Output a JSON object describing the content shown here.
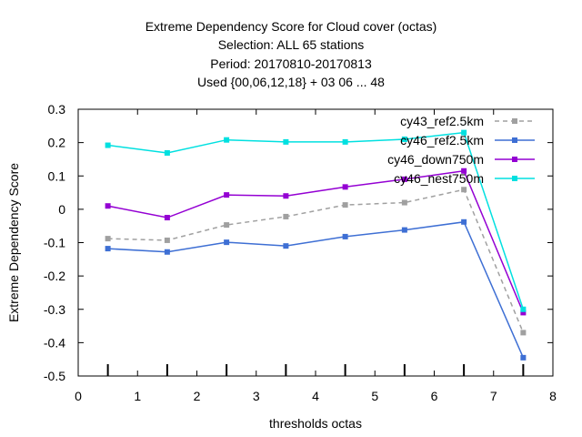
{
  "chart_data": {
    "type": "line",
    "title_lines": [
      "Extreme Dependency Score  for Cloud cover (octas)",
      "Selection: ALL     65 stations",
      "Period: 20170810-20170813",
      "Used {00,06,12,18} + 03 06 ... 48"
    ],
    "xlabel": "thresholds octas",
    "ylabel": "Extreme Dependency Score",
    "xlim": [
      0,
      8
    ],
    "ylim": [
      -0.5,
      0.3
    ],
    "x_ticks": [
      0,
      1,
      2,
      3,
      4,
      5,
      6,
      7,
      8
    ],
    "y_ticks": [
      0.3,
      0.2,
      0.1,
      0,
      -0.1,
      -0.2,
      -0.3,
      -0.4,
      -0.5
    ],
    "x_tick_labels": [
      "0",
      "1",
      "2",
      "3",
      "4",
      "5",
      "6",
      "7",
      "8"
    ],
    "y_tick_labels": [
      "0.3",
      "0.2",
      "0.1",
      "0",
      "-0.1",
      "-0.2",
      "-0.3",
      "-0.4",
      "-0.5"
    ],
    "grid": false,
    "legend_position": "top-right",
    "x": [
      0.5,
      1.5,
      2.5,
      3.5,
      4.5,
      5.5,
      6.5,
      7.5
    ],
    "bottom_bar_x": [
      0.5,
      1.5,
      2.5,
      3.5,
      4.5,
      5.5,
      6.5,
      7.5
    ],
    "series": [
      {
        "name": "cy43_ref2.5km",
        "color": "#a0a0a0",
        "dashed": true,
        "values": [
          -0.088,
          -0.093,
          -0.047,
          -0.022,
          0.013,
          0.02,
          0.059,
          -0.37
        ]
      },
      {
        "name": "cy46_ref2.5km",
        "color": "#3e6fd4",
        "dashed": false,
        "values": [
          -0.118,
          -0.128,
          -0.099,
          -0.11,
          -0.082,
          -0.062,
          -0.038,
          -0.445
        ]
      },
      {
        "name": "cy46_down750m",
        "color": "#9400d3",
        "dashed": false,
        "values": [
          0.01,
          -0.025,
          0.043,
          0.04,
          0.067,
          0.09,
          0.115,
          -0.31
        ]
      },
      {
        "name": "cy46_nest750m",
        "color": "#00e0e0",
        "dashed": false,
        "values": [
          0.192,
          0.169,
          0.208,
          0.202,
          0.202,
          0.21,
          0.23,
          -0.3
        ]
      }
    ]
  }
}
